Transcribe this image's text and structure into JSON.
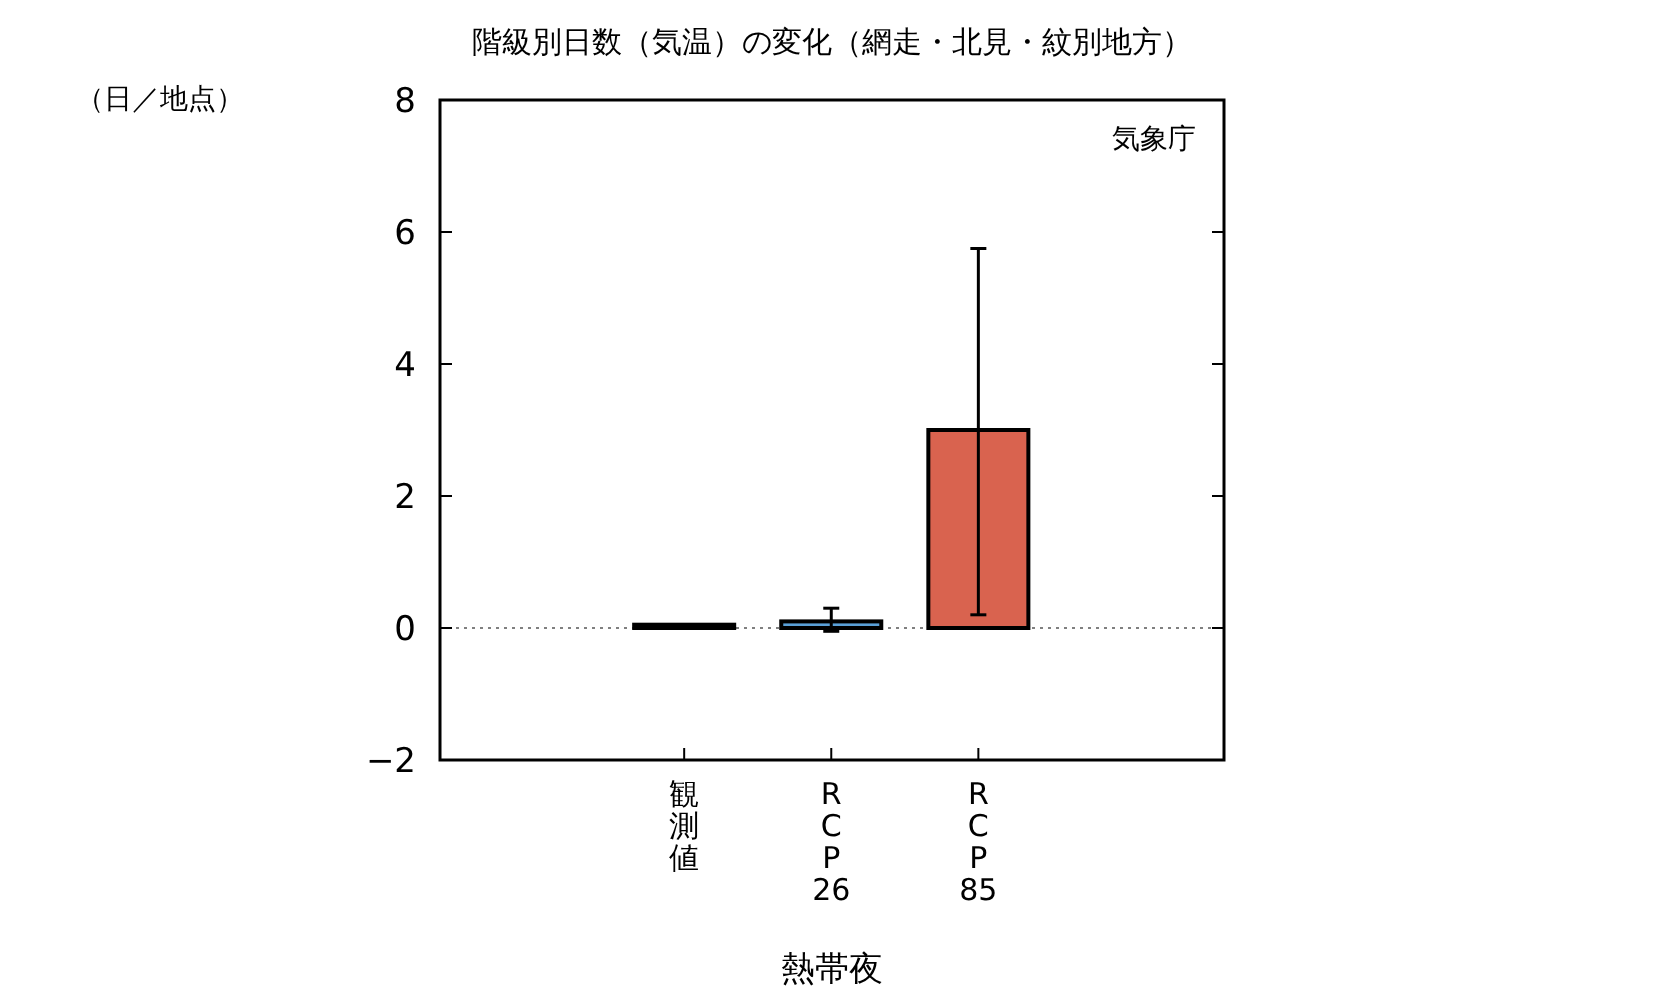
{
  "chart_data": {
    "type": "bar",
    "title": "階級別日数（気温）の変化（網走・北見・紋別地方）",
    "ylabel": "（日／地点）",
    "xlabel": "熱帯夜",
    "annotations": [
      "気象庁"
    ],
    "categories": [
      "観測値",
      "RCP26",
      "RCP85"
    ],
    "values": [
      0.05,
      0.1,
      3.0
    ],
    "colors": [
      "#a0a0a0",
      "#5aa0d8",
      "#d9634f"
    ],
    "errors": [
      null,
      [
        -0.05,
        0.3
      ],
      [
        0.2,
        5.75
      ]
    ],
    "ylim": [
      -2,
      8
    ],
    "yticks": [
      {
        "value": -2,
        "label": "−2"
      },
      0,
      2,
      4,
      6,
      8
    ],
    "ref_lines": [
      {
        "axis": "y",
        "value": 0,
        "color": "#808080",
        "line_style": "dotted"
      }
    ],
    "grid": false
  }
}
